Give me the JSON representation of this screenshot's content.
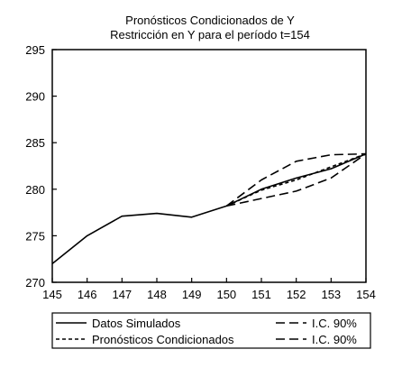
{
  "chart_data": {
    "type": "line",
    "title": "Pronósticos Condicionados de Y",
    "subtitle": "Restricción en Y para el período t=154",
    "x": [
      145,
      146,
      147,
      148,
      149,
      150,
      151,
      152,
      153,
      154
    ],
    "xlim": [
      145,
      154
    ],
    "ylim": [
      270,
      295
    ],
    "yticks": [
      270,
      275,
      280,
      285,
      290,
      295
    ],
    "grid": false,
    "legend_position": "bottom",
    "series": [
      {
        "name": "Datos Simulados",
        "style": "solid",
        "x": [
          145,
          146,
          147,
          148,
          149,
          150,
          151,
          152,
          153,
          154
        ],
        "values": [
          272.0,
          275.0,
          277.1,
          277.4,
          277.0,
          278.2,
          280.0,
          281.2,
          282.2,
          283.8
        ]
      },
      {
        "name": "Pronósticos Condicionados",
        "style": "dashed",
        "x": [
          150,
          151,
          152,
          153,
          154
        ],
        "values": [
          278.2,
          279.9,
          281.0,
          282.4,
          283.8
        ]
      },
      {
        "name": "I.C. 90%",
        "style": "longdash",
        "x": [
          150,
          151,
          152,
          153,
          154
        ],
        "values": [
          278.2,
          281.0,
          283.0,
          283.7,
          283.8
        ]
      },
      {
        "name": "I.C. 90%",
        "style": "longdash",
        "x": [
          150,
          151,
          152,
          153,
          154
        ],
        "values": [
          278.2,
          279.0,
          279.8,
          281.2,
          283.8
        ]
      }
    ]
  }
}
